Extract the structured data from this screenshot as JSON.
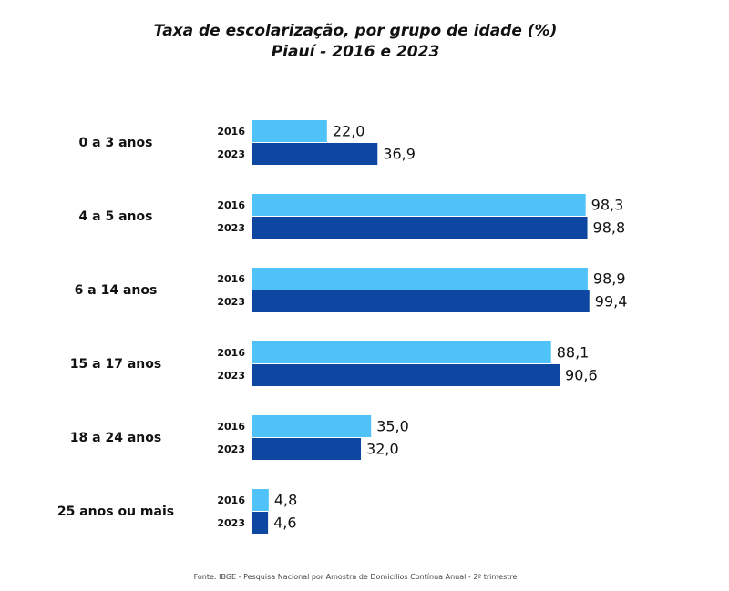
{
  "chart_data": {
    "type": "bar",
    "orientation": "horizontal",
    "title": "Taxa de escolarização, por grupo de idade (%)",
    "subtitle": "Piauí -  2016 e 2023",
    "categories": [
      "0 a 3 anos",
      "4 a 5 anos",
      "6 a 14 anos",
      "15 a 17 anos",
      "18 a 24 anos",
      "25 anos ou mais"
    ],
    "series": [
      {
        "name": "2016",
        "color": "#4fc3f7",
        "values": [
          22.0,
          98.3,
          98.9,
          88.1,
          35.0,
          4.8
        ],
        "labels": [
          "22,0",
          "98,3",
          "98,9",
          "88,1",
          "35,0",
          "4,8"
        ]
      },
      {
        "name": "2023",
        "color": "#0d47a1",
        "values": [
          36.9,
          98.8,
          99.4,
          90.6,
          32.0,
          4.6
        ],
        "labels": [
          "36,9",
          "98,8",
          "99,4",
          "90,6",
          "32,0",
          "4,6"
        ]
      }
    ],
    "xlim": [
      0,
      100
    ],
    "grid": false,
    "legend": "none",
    "source": "Fonte: IBGE - Pesquisa Nacional por Amostra de Domicílios Contínua Anual - 2º trimestre"
  }
}
